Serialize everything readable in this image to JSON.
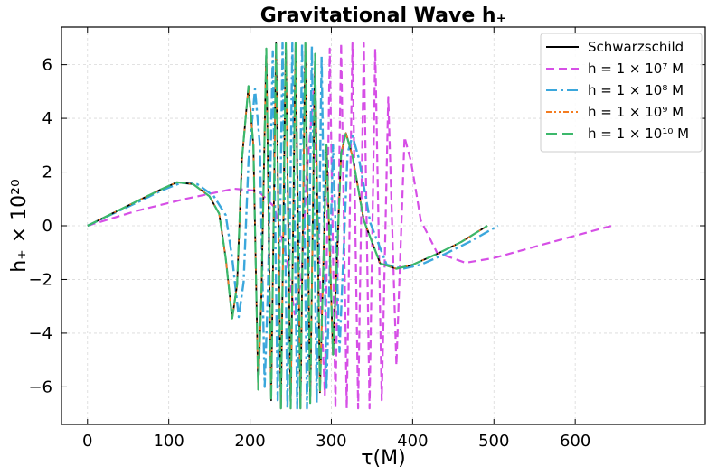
{
  "chart_data": {
    "type": "line",
    "title": "Gravitational Wave h₊",
    "xlabel": "τ(M)",
    "ylabel": "h₊ × 10²⁰",
    "xlim": [
      -32,
      760
    ],
    "ylim": [
      -7.4,
      7.4
    ],
    "xticks": [
      0,
      100,
      200,
      300,
      400,
      500,
      600
    ],
    "yticks": [
      -6,
      -4,
      -2,
      0,
      2,
      4,
      6
    ],
    "xtick_labels": [
      "0",
      "100",
      "200",
      "300",
      "400",
      "500",
      "600"
    ],
    "ytick_labels": [
      "−6",
      "−4",
      "−2",
      "0",
      "2",
      "4",
      "6"
    ],
    "grid": true,
    "legend_position": "top-right",
    "series": [
      {
        "name": "Schwarzschild",
        "color": "#000000",
        "dash": "solid",
        "x_end": 492,
        "points": [
          [
            0,
            0
          ],
          [
            30,
            0.45
          ],
          [
            60,
            0.9
          ],
          [
            90,
            1.35
          ],
          [
            110,
            1.62
          ],
          [
            130,
            1.55
          ],
          [
            150,
            1.1
          ],
          [
            162,
            0.45
          ],
          [
            170,
            -1.2
          ],
          [
            178,
            -3.45
          ],
          [
            184,
            -2.2
          ],
          [
            190,
            2.5
          ],
          [
            198,
            5.2
          ],
          [
            204,
            3.0
          ],
          [
            210,
            -6.1
          ],
          [
            214,
            -2.5
          ],
          [
            220,
            6.6
          ],
          [
            226,
            -6.5
          ],
          [
            232,
            6.8
          ],
          [
            238,
            -6.8
          ],
          [
            244,
            6.8
          ],
          [
            250,
            -6.8
          ],
          [
            256,
            6.8
          ],
          [
            262,
            -6.8
          ],
          [
            268,
            6.8
          ],
          [
            274,
            -6.6
          ],
          [
            280,
            6.4
          ],
          [
            286,
            -6.2
          ],
          [
            294,
            3.0
          ],
          [
            302,
            -4.8
          ],
          [
            312,
            2.7
          ],
          [
            318,
            3.45
          ],
          [
            326,
            2.6
          ],
          [
            340,
            0.2
          ],
          [
            360,
            -1.4
          ],
          [
            380,
            -1.6
          ],
          [
            400,
            -1.45
          ],
          [
            430,
            -1.05
          ],
          [
            460,
            -0.6
          ],
          [
            492,
            0
          ]
        ]
      },
      {
        "name": "h = 1 × 10⁷ M",
        "color": "#d64fe6",
        "dash": "9,5",
        "x_end": 645,
        "points": [
          [
            0,
            0
          ],
          [
            60,
            0.55
          ],
          [
            120,
            1.0
          ],
          [
            180,
            1.38
          ],
          [
            210,
            1.3
          ],
          [
            230,
            0.7
          ],
          [
            245,
            -1.2
          ],
          [
            255,
            -3.3
          ],
          [
            263,
            -2.0
          ],
          [
            270,
            2.0
          ],
          [
            278,
            5.0
          ],
          [
            286,
            -2.0
          ],
          [
            292,
            -6.3
          ],
          [
            298,
            6.6
          ],
          [
            305,
            -6.8
          ],
          [
            312,
            6.8
          ],
          [
            319,
            -6.8
          ],
          [
            326,
            6.8
          ],
          [
            333,
            -6.8
          ],
          [
            340,
            6.8
          ],
          [
            347,
            -6.8
          ],
          [
            354,
            6.6
          ],
          [
            362,
            -6.5
          ],
          [
            370,
            4.8
          ],
          [
            380,
            -5.2
          ],
          [
            390,
            3.3
          ],
          [
            398,
            2.4
          ],
          [
            410,
            0.2
          ],
          [
            430,
            -1.0
          ],
          [
            465,
            -1.38
          ],
          [
            500,
            -1.2
          ],
          [
            560,
            -0.7
          ],
          [
            645,
            0
          ]
        ]
      },
      {
        "name": "h = 1 × 10⁸ M",
        "color": "#3ba7dc",
        "dash": "12,4,3,4",
        "x_end": 505,
        "points": [
          [
            0,
            0
          ],
          [
            30,
            0.43
          ],
          [
            60,
            0.85
          ],
          [
            90,
            1.3
          ],
          [
            115,
            1.6
          ],
          [
            135,
            1.55
          ],
          [
            155,
            1.12
          ],
          [
            170,
            0.4
          ],
          [
            178,
            -1.2
          ],
          [
            186,
            -3.4
          ],
          [
            192,
            -2.1
          ],
          [
            198,
            2.4
          ],
          [
            206,
            5.1
          ],
          [
            212,
            3.0
          ],
          [
            218,
            -6.0
          ],
          [
            222,
            -2.4
          ],
          [
            228,
            6.5
          ],
          [
            234,
            -6.5
          ],
          [
            240,
            6.8
          ],
          [
            246,
            -6.8
          ],
          [
            252,
            6.8
          ],
          [
            258,
            -6.8
          ],
          [
            264,
            6.8
          ],
          [
            270,
            -6.8
          ],
          [
            276,
            6.7
          ],
          [
            282,
            -6.6
          ],
          [
            288,
            6.3
          ],
          [
            294,
            -6.1
          ],
          [
            302,
            3.0
          ],
          [
            310,
            -4.7
          ],
          [
            320,
            2.7
          ],
          [
            326,
            3.35
          ],
          [
            334,
            2.5
          ],
          [
            348,
            0.1
          ],
          [
            368,
            -1.45
          ],
          [
            388,
            -1.6
          ],
          [
            410,
            -1.45
          ],
          [
            440,
            -1.05
          ],
          [
            470,
            -0.6
          ],
          [
            505,
            0
          ]
        ]
      },
      {
        "name": "h = 1 × 10⁹ M",
        "color": "#f47c20",
        "dash": "6,3,2,3,2,3",
        "x_end": 492,
        "points": [
          [
            0,
            0
          ],
          [
            30,
            0.45
          ],
          [
            60,
            0.9
          ],
          [
            90,
            1.35
          ],
          [
            110,
            1.62
          ],
          [
            130,
            1.55
          ],
          [
            150,
            1.1
          ],
          [
            162,
            0.45
          ],
          [
            170,
            -1.2
          ],
          [
            178,
            -3.45
          ],
          [
            184,
            -2.2
          ],
          [
            190,
            2.5
          ],
          [
            198,
            5.2
          ],
          [
            204,
            3.0
          ],
          [
            210,
            -6.1
          ],
          [
            214,
            -2.5
          ],
          [
            220,
            6.6
          ],
          [
            226,
            -6.5
          ],
          [
            232,
            6.8
          ],
          [
            238,
            -6.8
          ],
          [
            244,
            6.8
          ],
          [
            250,
            -6.8
          ],
          [
            256,
            6.8
          ],
          [
            262,
            -6.8
          ],
          [
            268,
            6.8
          ],
          [
            274,
            -6.6
          ],
          [
            280,
            6.4
          ],
          [
            286,
            -6.2
          ],
          [
            294,
            3.0
          ],
          [
            302,
            -4.8
          ],
          [
            312,
            2.7
          ],
          [
            318,
            3.45
          ],
          [
            326,
            2.6
          ],
          [
            340,
            0.2
          ],
          [
            360,
            -1.4
          ],
          [
            380,
            -1.6
          ],
          [
            400,
            -1.45
          ],
          [
            430,
            -1.05
          ],
          [
            460,
            -0.6
          ],
          [
            492,
            0
          ]
        ]
      },
      {
        "name": "h = 1 × 10¹⁰ M",
        "color": "#3cb86b",
        "dash": "12,6",
        "x_end": 492,
        "points": [
          [
            0,
            0
          ],
          [
            30,
            0.45
          ],
          [
            60,
            0.9
          ],
          [
            90,
            1.35
          ],
          [
            110,
            1.62
          ],
          [
            130,
            1.55
          ],
          [
            150,
            1.1
          ],
          [
            162,
            0.45
          ],
          [
            170,
            -1.2
          ],
          [
            178,
            -3.45
          ],
          [
            184,
            -2.2
          ],
          [
            190,
            2.5
          ],
          [
            198,
            5.2
          ],
          [
            204,
            3.0
          ],
          [
            210,
            -6.1
          ],
          [
            214,
            -2.5
          ],
          [
            220,
            6.6
          ],
          [
            226,
            -6.5
          ],
          [
            232,
            6.8
          ],
          [
            238,
            -6.8
          ],
          [
            244,
            6.8
          ],
          [
            250,
            -6.8
          ],
          [
            256,
            6.8
          ],
          [
            262,
            -6.8
          ],
          [
            268,
            6.8
          ],
          [
            274,
            -6.6
          ],
          [
            280,
            6.4
          ],
          [
            286,
            -6.2
          ],
          [
            294,
            3.0
          ],
          [
            302,
            -4.8
          ],
          [
            312,
            2.7
          ],
          [
            318,
            3.45
          ],
          [
            326,
            2.6
          ],
          [
            340,
            0.2
          ],
          [
            360,
            -1.4
          ],
          [
            380,
            -1.6
          ],
          [
            400,
            -1.45
          ],
          [
            430,
            -1.05
          ],
          [
            460,
            -0.6
          ],
          [
            492,
            0
          ]
        ]
      }
    ]
  }
}
